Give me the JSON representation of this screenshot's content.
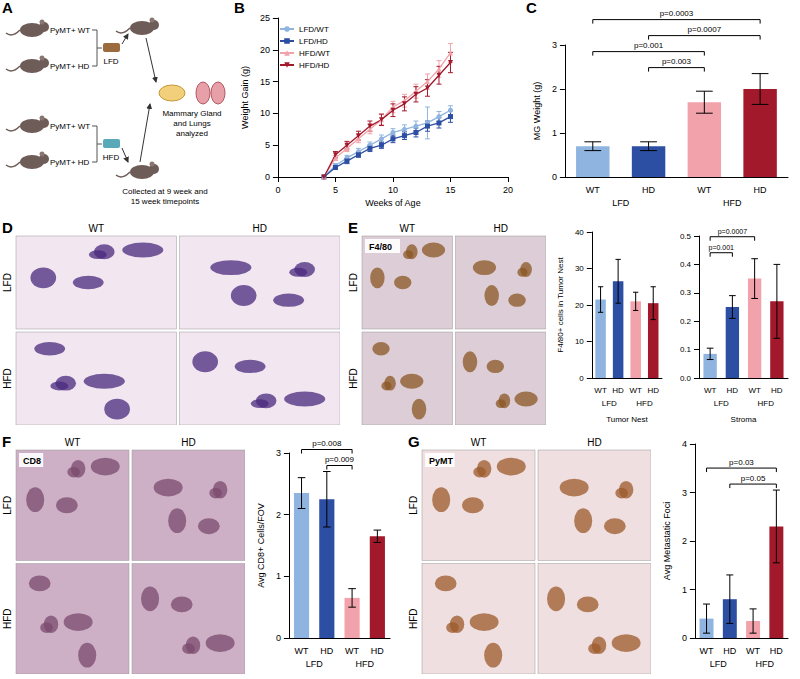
{
  "diagram": {
    "panel": "A",
    "mice": [
      "PyMT+ WT",
      "PyMT+ HD",
      "PyMT+ WT",
      "PyMT+ HD"
    ],
    "diets": [
      "LFD",
      "HFD"
    ],
    "outcome": "Mammary Gland and Lungs analyzed",
    "collection": "Collected at 9 week and 15 week timepoints"
  },
  "image_panels": [
    {
      "panel": "D",
      "columns": [
        "WT",
        "HD"
      ],
      "rows": [
        "LFD",
        "HFD"
      ]
    },
    {
      "panel": "E",
      "stain": "F4/80",
      "columns": [
        "WT",
        "HD"
      ],
      "rows": [
        "LFD",
        "HFD"
      ]
    },
    {
      "panel": "F",
      "stain": "CD8",
      "columns": [
        "WT",
        "HD"
      ],
      "rows": [
        "LFD",
        "HFD"
      ]
    },
    {
      "panel": "G",
      "stain": "PyMT",
      "columns": [
        "WT",
        "HD"
      ],
      "rows": [
        "LFD",
        "HFD"
      ]
    }
  ],
  "chart_data": [
    {
      "panel": "B",
      "type": "line",
      "x_label": "Weeks of Age",
      "y_label": "Weight Gain (g)",
      "xlim": [
        0,
        20
      ],
      "xticks": [
        0,
        5,
        10,
        15,
        20
      ],
      "ylim": [
        0,
        25
      ],
      "yticks": [
        0,
        5,
        10,
        15,
        20,
        25
      ],
      "legend": "upper left",
      "x": [
        4,
        5,
        6,
        7,
        8,
        9,
        10,
        11,
        12,
        13,
        14,
        15
      ],
      "series": [
        {
          "name": "LFD/WT",
          "color": "#8fb4e0",
          "marker": "circle",
          "values": [
            0,
            1.8,
            3,
            4,
            5,
            6,
            7,
            7.5,
            8,
            8.5,
            9.5,
            10.5
          ],
          "errors": [
            0,
            0.3,
            0.4,
            0.5,
            0.5,
            0.6,
            0.6,
            0.7,
            0.8,
            2.5,
            0.8,
            0.7
          ]
        },
        {
          "name": "LFD/HD",
          "color": "#2d4fa3",
          "marker": "square",
          "values": [
            0,
            1.5,
            2.5,
            3.5,
            4.5,
            5,
            6,
            6.5,
            7,
            8,
            8.5,
            9.5
          ],
          "errors": [
            0,
            0.3,
            0.4,
            0.4,
            0.5,
            0.5,
            0.6,
            0.6,
            0.7,
            0.8,
            0.8,
            0.9
          ]
        },
        {
          "name": "HFD/WT",
          "color": "#f2a2aa",
          "marker": "triangle",
          "values": [
            0,
            3,
            4.5,
            6,
            7.5,
            9,
            11,
            12,
            13.5,
            15,
            17,
            19.5
          ],
          "errors": [
            0,
            0.4,
            0.5,
            0.6,
            0.7,
            0.8,
            0.9,
            1,
            1.1,
            1.2,
            1.3,
            1.5
          ]
        },
        {
          "name": "HFD/HD",
          "color": "#a3192c",
          "marker": "triangle_down",
          "values": [
            0,
            3.5,
            5,
            6.5,
            8,
            9,
            10.5,
            11.5,
            13,
            14,
            16,
            18
          ],
          "errors": [
            0,
            0.5,
            0.6,
            0.7,
            0.8,
            0.9,
            1,
            1.1,
            1.2,
            1.3,
            1.4,
            1.6
          ]
        }
      ]
    },
    {
      "panel": "C",
      "type": "bar",
      "y_label": "MG Weight (g)",
      "categories": [
        "WT",
        "HD",
        "WT",
        "HD"
      ],
      "groups": [
        "LFD",
        "HFD"
      ],
      "values": [
        0.7,
        0.7,
        1.7,
        2.0
      ],
      "errors": [
        0.1,
        0.1,
        0.25,
        0.35
      ],
      "colors": [
        "#8fb4e0",
        "#2d4fa3",
        "#f2a2aa",
        "#a3192c"
      ],
      "ylim": [
        0,
        3
      ],
      "yticks": [
        0,
        1,
        2,
        3
      ],
      "comparisons": [
        {
          "from": 1,
          "to": 2,
          "label": "p=0.003"
        },
        {
          "from": 0,
          "to": 2,
          "label": "p=0.001"
        },
        {
          "from": 1,
          "to": 3,
          "label": "p=0.0007"
        },
        {
          "from": 0,
          "to": 3,
          "label": "p=0.0003"
        }
      ]
    },
    {
      "type": "bar",
      "y_label": "F4/80+ cells in Tumor Nest",
      "x_label": "Tumor Nest",
      "categories": [
        "WT",
        "HD",
        "WT",
        "HD"
      ],
      "groups": [
        "LFD",
        "HFD"
      ],
      "values": [
        21.5,
        26.5,
        21,
        20.5
      ],
      "errors": [
        3.5,
        6,
        2.5,
        4.5
      ],
      "colors": [
        "#8fb4e0",
        "#2d4fa3",
        "#f2a2aa",
        "#a3192c"
      ],
      "ylim": [
        0,
        40
      ],
      "yticks": [
        0,
        10,
        20,
        30,
        40
      ]
    },
    {
      "type": "bar",
      "x_label": "Stroma",
      "categories": [
        "WT",
        "HD",
        "WT",
        "HD"
      ],
      "groups": [
        "LFD",
        "HFD"
      ],
      "values": [
        0.085,
        0.25,
        0.35,
        0.27
      ],
      "errors": [
        0.02,
        0.04,
        0.07,
        0.13
      ],
      "colors": [
        "#8fb4e0",
        "#2d4fa3",
        "#f2a2aa",
        "#a3192c"
      ],
      "ylim": [
        0,
        0.5
      ],
      "yticks": [
        {
          "value": 0,
          "label": "0.0"
        },
        0.1,
        0.2,
        0.3,
        0.4,
        0.5
      ],
      "comparisons": [
        {
          "from": 0,
          "to": 1,
          "label": "p=0.001"
        },
        {
          "from": 0,
          "to": 2,
          "label": "p=0.0007"
        }
      ]
    },
    {
      "type": "bar",
      "y_label": "Avg CD8+ Cells/FOV",
      "categories": [
        "WT",
        "HD",
        "WT",
        "HD"
      ],
      "groups": [
        "LFD",
        "HFD"
      ],
      "values": [
        2.35,
        2.25,
        0.65,
        1.65
      ],
      "errors": [
        0.25,
        0.45,
        0.15,
        0.1
      ],
      "colors": [
        "#8fb4e0",
        "#2d4fa3",
        "#f2a2aa",
        "#a3192c"
      ],
      "ylim": [
        0,
        3
      ],
      "yticks": [
        0,
        1,
        2,
        3
      ],
      "comparisons": [
        {
          "from": 1,
          "to": 2,
          "label": "p=0.009"
        },
        {
          "from": 0,
          "to": 2,
          "label": "p=0.008"
        }
      ]
    },
    {
      "type": "bar",
      "y_label": "Avg Metastatic Foci",
      "categories": [
        "WT",
        "HD",
        "WT",
        "HD"
      ],
      "groups": [
        "LFD",
        "HFD"
      ],
      "values": [
        0.4,
        0.8,
        0.35,
        2.3
      ],
      "errors": [
        0.3,
        0.5,
        0.25,
        0.75
      ],
      "colors": [
        "#8fb4e0",
        "#2d4fa3",
        "#f2a2aa",
        "#a3192c"
      ],
      "ylim": [
        0,
        4
      ],
      "yticks": [
        0,
        1,
        2,
        3,
        4
      ],
      "comparisons": [
        {
          "from": 1,
          "to": 3,
          "label": "p=0.05"
        },
        {
          "from": 0,
          "to": 3,
          "label": "p=0.03"
        }
      ]
    }
  ]
}
